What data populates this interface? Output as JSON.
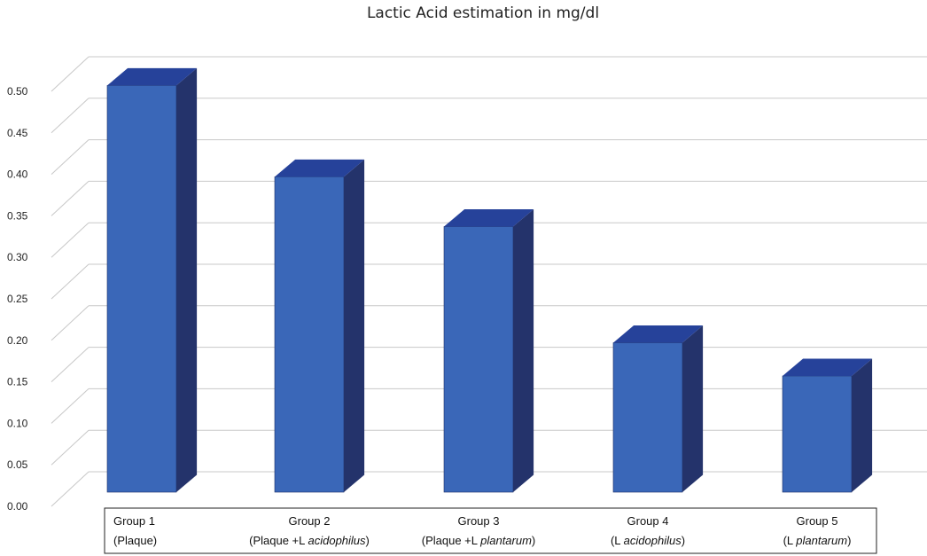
{
  "chart_data": {
    "type": "bar",
    "title": "Lactic Acid estimation in mg/dl",
    "xlabel": "",
    "ylabel": "",
    "ylim": [
      0,
      0.5
    ],
    "yticks": [
      "0.00",
      "0.05",
      "0.10",
      "0.15",
      "0.20",
      "0.25",
      "0.30",
      "0.35",
      "0.40",
      "0.45",
      "0.50"
    ],
    "grid": true,
    "categories": [
      {
        "line1": "Group 1",
        "line2_prefix": "(Plaque)",
        "line2_italic": "",
        "line2_suffix": ""
      },
      {
        "line1": "Group 2",
        "line2_prefix": "(Plaque +L ",
        "line2_italic": "acidophilus",
        "line2_suffix": ")"
      },
      {
        "line1": "Group 3",
        "line2_prefix": "(Plaque +L ",
        "line2_italic": "plantarum",
        "line2_suffix": ")"
      },
      {
        "line1": "Group 4",
        "line2_prefix": "(L ",
        "line2_italic": "acidophilus",
        "line2_suffix": ")"
      },
      {
        "line1": "Group 5",
        "line2_prefix": "(L ",
        "line2_italic": "plantarum",
        "line2_suffix": ")"
      }
    ],
    "values": [
      0.49,
      0.38,
      0.32,
      0.18,
      0.14
    ],
    "colors": {
      "front": "#3a67b8",
      "side": "#24336b",
      "top": "#26429a"
    }
  }
}
